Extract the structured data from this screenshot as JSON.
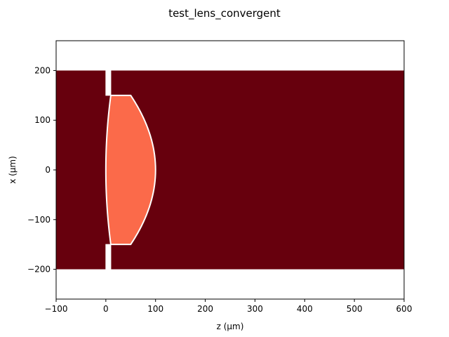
{
  "chart_data": {
    "type": "heatmap",
    "title": "test_lens_convergent",
    "xlabel": "z (μm)",
    "ylabel": "x (μm)",
    "xlim": [
      -100,
      600
    ],
    "ylim": [
      -260,
      260
    ],
    "x_ticks": [
      -100,
      0,
      100,
      200,
      300,
      400,
      500,
      600
    ],
    "y_ticks": [
      -200,
      -100,
      0,
      100,
      200
    ],
    "x_tick_labels": [
      "−100",
      "0",
      "100",
      "200",
      "300",
      "400",
      "500",
      "600"
    ],
    "y_tick_labels": [
      "−200",
      "−100",
      "0",
      "100",
      "200"
    ],
    "grid": false,
    "legend": "none",
    "regions": {
      "medium": {
        "z": [
          -100,
          600
        ],
        "x": [
          -200,
          200
        ],
        "color": "#67000d"
      },
      "lens": {
        "color": "#fb6a4a",
        "aperture_half_width": 150,
        "front_vertex_z": 0,
        "front_edge_z": 10,
        "back_vertex_z": 100,
        "back_edge_z": 50
      },
      "mask_slits": [
        {
          "z": [
            0,
            10
          ],
          "x": [
            150,
            200
          ],
          "color": "#ffffff"
        },
        {
          "z": [
            0,
            10
          ],
          "x": [
            -200,
            -150
          ],
          "color": "#ffffff"
        }
      ],
      "outline_color": "#ffffff"
    }
  }
}
